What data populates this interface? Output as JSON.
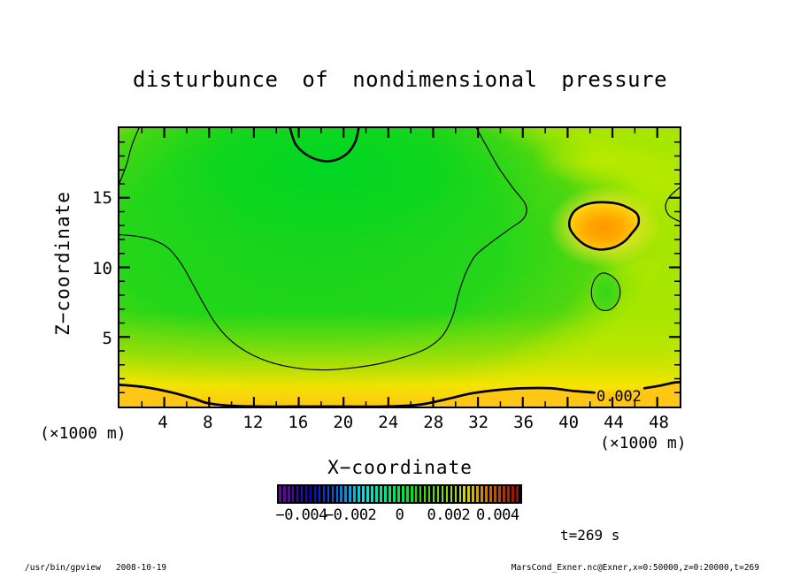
{
  "title": "disturbunce of nondimensional pressure",
  "chart_data": {
    "type": "heatmap",
    "subtype": "filled-contour",
    "title": "disturbunce of nondimensional pressure",
    "xlabel": "X−coordinate",
    "ylabel": "Z−coordinate",
    "x_axis": {
      "range_m": [
        0,
        50000
      ],
      "unit": "(×1000 m)",
      "major_ticks": [
        4,
        8,
        12,
        16,
        20,
        24,
        28,
        32,
        36,
        40,
        44,
        48
      ],
      "minor_step": 2
    },
    "z_axis": {
      "range_m": [
        0,
        20000
      ],
      "unit": "(×1000 m)",
      "major_ticks": [
        5,
        10,
        15
      ],
      "minor_step": 1
    },
    "colorbar": {
      "min": -0.005,
      "max": 0.005,
      "tick_values": [
        -0.004,
        -0.002,
        0,
        0.002,
        0.004
      ],
      "tick_labels": [
        "−0.004",
        "−0.002",
        "0",
        "0.002",
        "0.004"
      ],
      "palette": "rainbow-striped-on-black"
    },
    "contour_label": "0.002",
    "time_label": "t=269 s",
    "features": [
      {
        "region": "center-left (x≈5000–30000 m, z≈3000–20000 m)",
        "description": "broad green negative anomaly; thick contour arc at top near x≈15000–21000 m marks minimum below −0.002",
        "value_range": [
          -0.003,
          0
        ]
      },
      {
        "region": "x≈43000 m, z≈13000 m",
        "description": "orange local maximum enclosed by thick contour, peak ≈ +0.003",
        "value_range": [
          0.002,
          0.0035
        ]
      },
      {
        "region": "bottom layer z≲2000 m",
        "description": "yellow-orange positive band exceeding labeled thick contour 0.002",
        "value_range": [
          0.002,
          0.003
        ]
      },
      {
        "region": "right third (x≳33000 m)",
        "description": "weak positive yellow-green field ≈ +0.001 with small green pocket at x≈43000 m, z≈8000 m",
        "value_range": [
          0,
          0.002
        ]
      }
    ]
  },
  "annotations": {
    "x_unit_left": "(×1000 m)",
    "x_unit_right": "(×1000 m)",
    "time_label": "t=269 s"
  },
  "footer": {
    "left": "/usr/bin/gpview   2008-10-19",
    "right": "MarsCond_Exner.nc@Exner,x=0:50000,z=0:20000,t=269"
  },
  "colors": {
    "frame": "#000000",
    "field_green": "#1ed51c",
    "field_yellow_green": "#a6e600",
    "maximum_orange": "#ff9600",
    "bottom_band_orange": "#ffc516"
  }
}
